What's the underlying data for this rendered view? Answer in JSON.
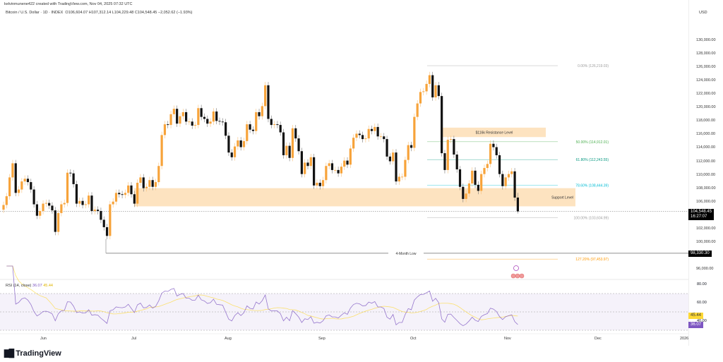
{
  "header": {
    "credit": "kelvinmunene422 created with TradingView.com, Nov 04, 2025 07:32 UTC",
    "symbol": "Bitcoin / U.S. Dollar · 1D · INDEX",
    "ohlc": "O106,604.07  H107,312.14  L104,229.48  C104,548.45  −2,052.62 (−1.93%)"
  },
  "price_axis": {
    "currency": "USD",
    "ticks": [
      "130,000.00",
      "128,000.00",
      "126,000.00",
      "124,000.00",
      "122,000.00",
      "120,000.00",
      "118,000.00",
      "116,000.00",
      "114,000.00",
      "112,000.00",
      "110,000.00",
      "108,000.00",
      "106,000.00",
      "102,000.00",
      "100,000.00",
      "96,000.00"
    ],
    "current_price": "104,548.45",
    "countdown": "16:27:07",
    "low_tag": "98,330.30"
  },
  "time_axis": {
    "ticks": [
      "Jun",
      "Jul",
      "Aug",
      "Sep",
      "Oct",
      "Nov",
      "Dec",
      "2026"
    ]
  },
  "annotations": {
    "resistance_label": "$116k Resistance Level",
    "support_label": "Support Level",
    "low_label": "4-Month Low",
    "fib": [
      {
        "label": "0.00% (126,219.03)",
        "price": 126219.03,
        "color": "#9e9e9e"
      },
      {
        "label": "50.00% (114,912.01)",
        "price": 114912.01,
        "color": "#4caf50"
      },
      {
        "label": "61.80% (112,243.55)",
        "price": 112243.55,
        "color": "#089981"
      },
      {
        "label": "78.60% (108,444.39)",
        "price": 108444.39,
        "color": "#00bcd4"
      },
      {
        "label": "100.00% (103,604.99)",
        "price": 103604.99,
        "color": "#9e9e9e"
      },
      {
        "label": "127.20% (97,453.97)",
        "price": 97453.97,
        "color": "#ff9800"
      }
    ]
  },
  "rsi": {
    "legend": "RSI (14, close)",
    "value": "36.07",
    "ma_value": "45.44",
    "axis_ticks": [
      "80.00",
      "60.00",
      "40.00"
    ],
    "rsi_color": "#7e57c2",
    "ma_color": "#fdd835"
  },
  "colors": {
    "up": "#f7a33a",
    "down": "#111111",
    "zone": "#fde3c0"
  },
  "brand": "TradingView",
  "chart_data": {
    "type": "candlestick",
    "title": "Bitcoin / U.S. Dollar · 1D · INDEX",
    "x_start": "2025-05-19",
    "x_end": "2025-11-04",
    "ylim": [
      95000,
      132000
    ],
    "first_open": 104800,
    "last_candle": {
      "open": 106604.07,
      "high": 107312.14,
      "low": 104229.48,
      "close": 104548.45
    },
    "support_zone": [
      105300,
      108000
    ],
    "resistance_zone": [
      115600,
      117000
    ],
    "four_month_low": 98330.3,
    "closes": [
      105500,
      106800,
      109600,
      111700,
      107300,
      107800,
      109000,
      109400,
      108900,
      107800,
      105600,
      103900,
      104600,
      105700,
      105800,
      105400,
      104700,
      101500,
      104300,
      105600,
      105800,
      110300,
      110200,
      108600,
      105700,
      106100,
      105500,
      105600,
      106900,
      104600,
      104800,
      104600,
      103300,
      102200,
      100900,
      105600,
      106000,
      107300,
      107100,
      107000,
      107300,
      108400,
      107100,
      105700,
      108800,
      109600,
      108000,
      108200,
      109200,
      108200,
      108900,
      111300,
      115900,
      117500,
      117400,
      119000,
      119800,
      117600,
      118700,
      119300,
      117900,
      117900,
      117300,
      117400,
      119900,
      118600,
      118300,
      117600,
      117900,
      119400,
      118000,
      117900,
      117800,
      115800,
      113300,
      112600,
      114200,
      115100,
      114100,
      115000,
      117500,
      116700,
      116500,
      119300,
      118700,
      120200,
      123300,
      118300,
      117400,
      117500,
      117400,
      116300,
      112900,
      114300,
      112500,
      116900,
      115400,
      113500,
      110100,
      111800,
      111300,
      112600,
      108400,
      108800,
      108300,
      109200,
      111300,
      111700,
      110700,
      110700,
      110200,
      111200,
      112100,
      111500,
      113900,
      115500,
      116100,
      115900,
      115300,
      115400,
      116800,
      116500,
      117100,
      115700,
      115700,
      115300,
      112700,
      112000,
      113300,
      109000,
      109700,
      109700,
      112200,
      114400,
      114000,
      118600,
      120600,
      122300,
      122400,
      123500,
      124800,
      121500,
      123300,
      121700,
      113200,
      110700,
      115200,
      115300,
      113000,
      110800,
      108200,
      106400,
      107200,
      108700,
      110600,
      108500,
      107600,
      110100,
      111000,
      111600,
      114600,
      114100,
      112900,
      110100,
      108300,
      109600,
      110100,
      110500,
      106600,
      104548.45
    ]
  }
}
